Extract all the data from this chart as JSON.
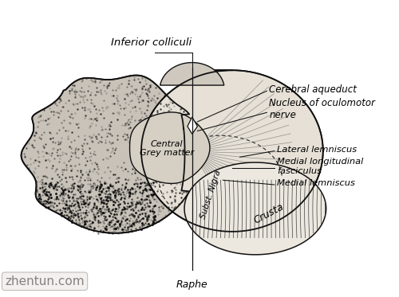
{
  "bg": "white",
  "lc": "#111111",
  "watermark": "zhentun.com",
  "labels": {
    "inferior_colliculi": "Inferior colliculi",
    "cerebral_aqueduct": "Cerebral aqueduct",
    "nucleus_oculomotor": "Nucleus of oculomotor\nnerve",
    "lateral_lemniscus": "Lateral lemniscus",
    "medial_longitudinal": "Medial longitudinal\nfasciculus",
    "medial_lemniscus": "Medial lemniscus",
    "central_grey": "Central\nGrey matter",
    "subst_nigra": "Subst. Nigra",
    "crusta": "Crusta",
    "raphe": "Raphe"
  }
}
